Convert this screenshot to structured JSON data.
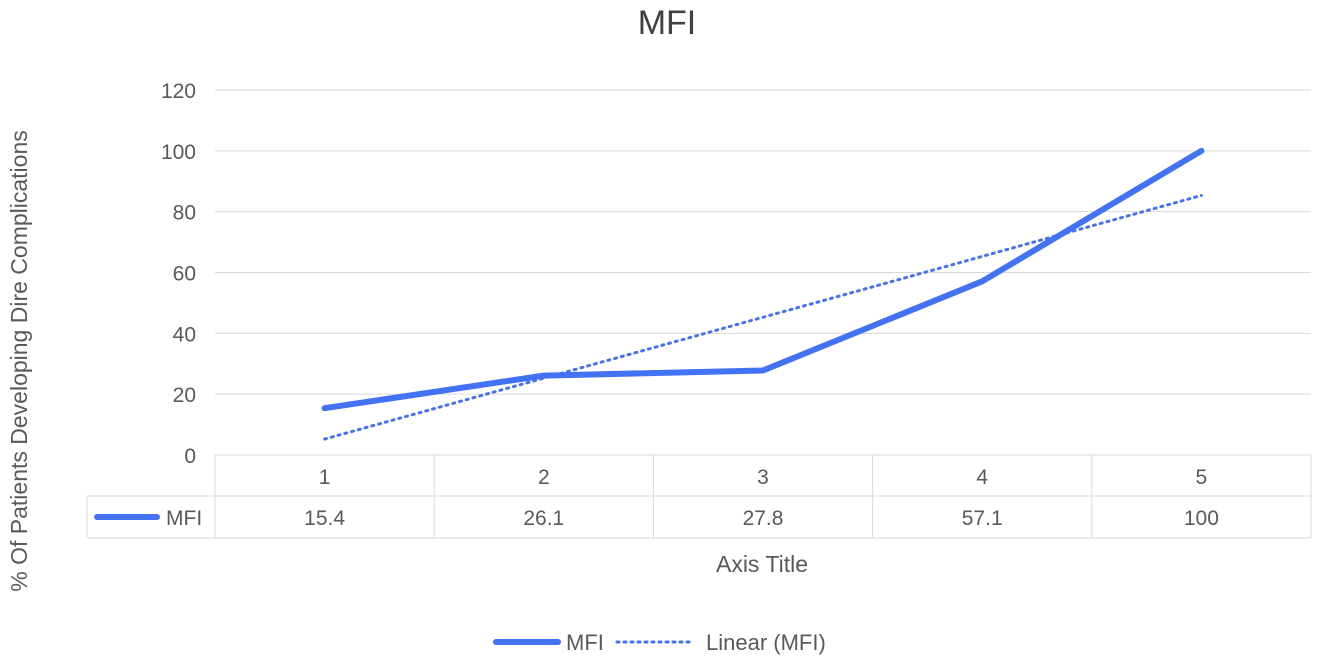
{
  "chart_data": {
    "type": "line",
    "title": "MFI",
    "xlabel": "Axis Title",
    "ylabel": "% Of Patients Developing Dire Complications",
    "categories": [
      "1",
      "2",
      "3",
      "4",
      "5"
    ],
    "series": [
      {
        "name": "MFI",
        "values": [
          15.4,
          26.1,
          27.8,
          57.1,
          100
        ],
        "color": "#4472F4",
        "style": "solid"
      }
    ],
    "trendline": {
      "name": "Linear (MFI)",
      "type": "linear",
      "of_series": "MFI",
      "color": "#4472F4",
      "style": "dotted"
    },
    "ylim": [
      0,
      120
    ],
    "yticks": [
      0,
      20,
      40,
      60,
      80,
      100,
      120
    ],
    "grid": true,
    "data_table": true,
    "legend_position": "bottom"
  }
}
